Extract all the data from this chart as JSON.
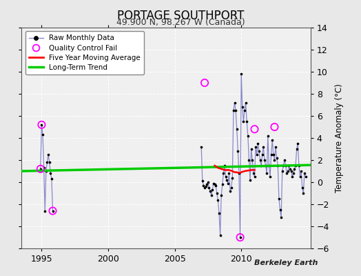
{
  "title": "PORTAGE SOUTHPORT",
  "subtitle": "49.900 N, 98.267 W (Canada)",
  "ylabel": "Temperature Anomaly (°C)",
  "attribution": "Berkeley Earth",
  "xlim": [
    1993.5,
    2015.2
  ],
  "ylim": [
    -6,
    14
  ],
  "yticks": [
    -6,
    -4,
    -2,
    0,
    2,
    4,
    6,
    8,
    10,
    12,
    14
  ],
  "xticks": [
    1995,
    2000,
    2005,
    2010
  ],
  "background_color": "#e8e8e8",
  "plot_bg_color": "#f0f0f0",
  "raw_line_color": "#8888cc",
  "raw_dot_color": "#000000",
  "qc_fail_color": "#ff00ff",
  "moving_avg_color": "#ff0000",
  "trend_color": "#00cc00",
  "seg1_x": [
    1994.917,
    1995.0,
    1995.083,
    1995.167,
    1995.25,
    1995.333,
    1995.417,
    1995.5,
    1995.583,
    1995.667,
    1995.75,
    1995.833
  ],
  "seg1_y": [
    1.2,
    5.2,
    4.3,
    1.3,
    -2.6,
    1.0,
    1.8,
    2.5,
    1.8,
    0.8,
    0.3,
    -2.6
  ],
  "seg2_x": [
    2007.0,
    2007.083,
    2007.167,
    2007.25,
    2007.333,
    2007.417,
    2007.5,
    2007.583,
    2007.667,
    2007.75,
    2007.833,
    2007.917,
    2008.0,
    2008.083,
    2008.167,
    2008.25,
    2008.333,
    2008.417,
    2008.5,
    2008.583,
    2008.667,
    2008.75,
    2008.833,
    2008.917,
    2009.0,
    2009.083,
    2009.167,
    2009.25,
    2009.333,
    2009.417,
    2009.5,
    2009.583,
    2009.667,
    2009.75,
    2009.833,
    2009.917,
    2010.0,
    2010.083,
    2010.167,
    2010.25,
    2010.333,
    2010.417,
    2010.5,
    2010.583,
    2010.667,
    2010.75,
    2010.833,
    2010.917,
    2011.0,
    2011.083,
    2011.167,
    2011.25,
    2011.333,
    2011.417,
    2011.5,
    2011.583,
    2011.667,
    2011.75,
    2011.833,
    2011.917,
    2012.0,
    2012.083,
    2012.167,
    2012.25,
    2012.333,
    2012.417,
    2012.5,
    2012.583,
    2012.667,
    2012.75,
    2012.833,
    2012.917,
    2013.0,
    2013.083,
    2013.167,
    2013.25,
    2013.333,
    2013.417,
    2013.5,
    2013.583,
    2013.667,
    2013.75,
    2013.833,
    2013.917,
    2014.0,
    2014.083,
    2014.167,
    2014.25,
    2014.333,
    2014.417,
    2014.5,
    2014.583,
    2014.667,
    2014.75,
    2014.833
  ],
  "seg2_y": [
    3.2,
    0.1,
    -0.3,
    -0.5,
    -0.4,
    -0.2,
    0.0,
    -0.5,
    -0.8,
    -1.2,
    -0.7,
    -0.1,
    -0.2,
    -0.3,
    -1.0,
    -1.6,
    -2.8,
    -4.8,
    -1.2,
    -0.2,
    0.8,
    1.5,
    0.5,
    0.2,
    -0.1,
    0.8,
    -0.8,
    -0.5,
    0.4,
    6.5,
    7.2,
    6.5,
    4.8,
    2.8,
    0.8,
    -5.0,
    9.8,
    6.8,
    5.5,
    6.5,
    7.2,
    5.5,
    4.2,
    2.0,
    0.2,
    3.0,
    2.0,
    0.8,
    0.5,
    3.2,
    2.5,
    3.5,
    2.8,
    2.0,
    1.5,
    2.5,
    3.2,
    2.0,
    1.5,
    0.8,
    4.2,
    1.5,
    0.5,
    2.5,
    3.8,
    2.5,
    2.0,
    3.2,
    2.2,
    1.5,
    -1.5,
    -2.5,
    -3.2,
    1.0,
    1.5,
    2.0,
    1.5,
    0.8,
    1.0,
    1.5,
    1.2,
    1.0,
    0.5,
    0.8,
    1.2,
    1.5,
    3.0,
    3.5,
    1.5,
    0.5,
    1.0,
    -0.5,
    -1.0,
    0.8,
    0.5
  ],
  "qc_fail_x": [
    1994.917,
    1995.0,
    1995.833,
    2007.25,
    2009.917,
    2011.0,
    2012.5
  ],
  "qc_fail_y": [
    1.2,
    5.2,
    -2.6,
    9.0,
    -5.0,
    4.8,
    5.0
  ],
  "moving_avg_x": [
    2008.0,
    2008.25,
    2008.5,
    2008.75,
    2009.0,
    2009.083,
    2009.167,
    2009.25,
    2009.333,
    2009.5,
    2009.583,
    2009.667,
    2009.75,
    2009.833,
    2009.917,
    2010.0,
    2010.25,
    2010.5,
    2010.75,
    2011.0
  ],
  "moving_avg_y": [
    1.5,
    1.3,
    1.2,
    1.1,
    1.1,
    1.1,
    1.05,
    1.05,
    1.0,
    0.9,
    0.9,
    0.9,
    0.85,
    0.85,
    0.85,
    0.9,
    1.0,
    1.05,
    1.1,
    1.1
  ],
  "trend_x": [
    1993.5,
    2015.2
  ],
  "trend_y": [
    1.0,
    1.55
  ]
}
